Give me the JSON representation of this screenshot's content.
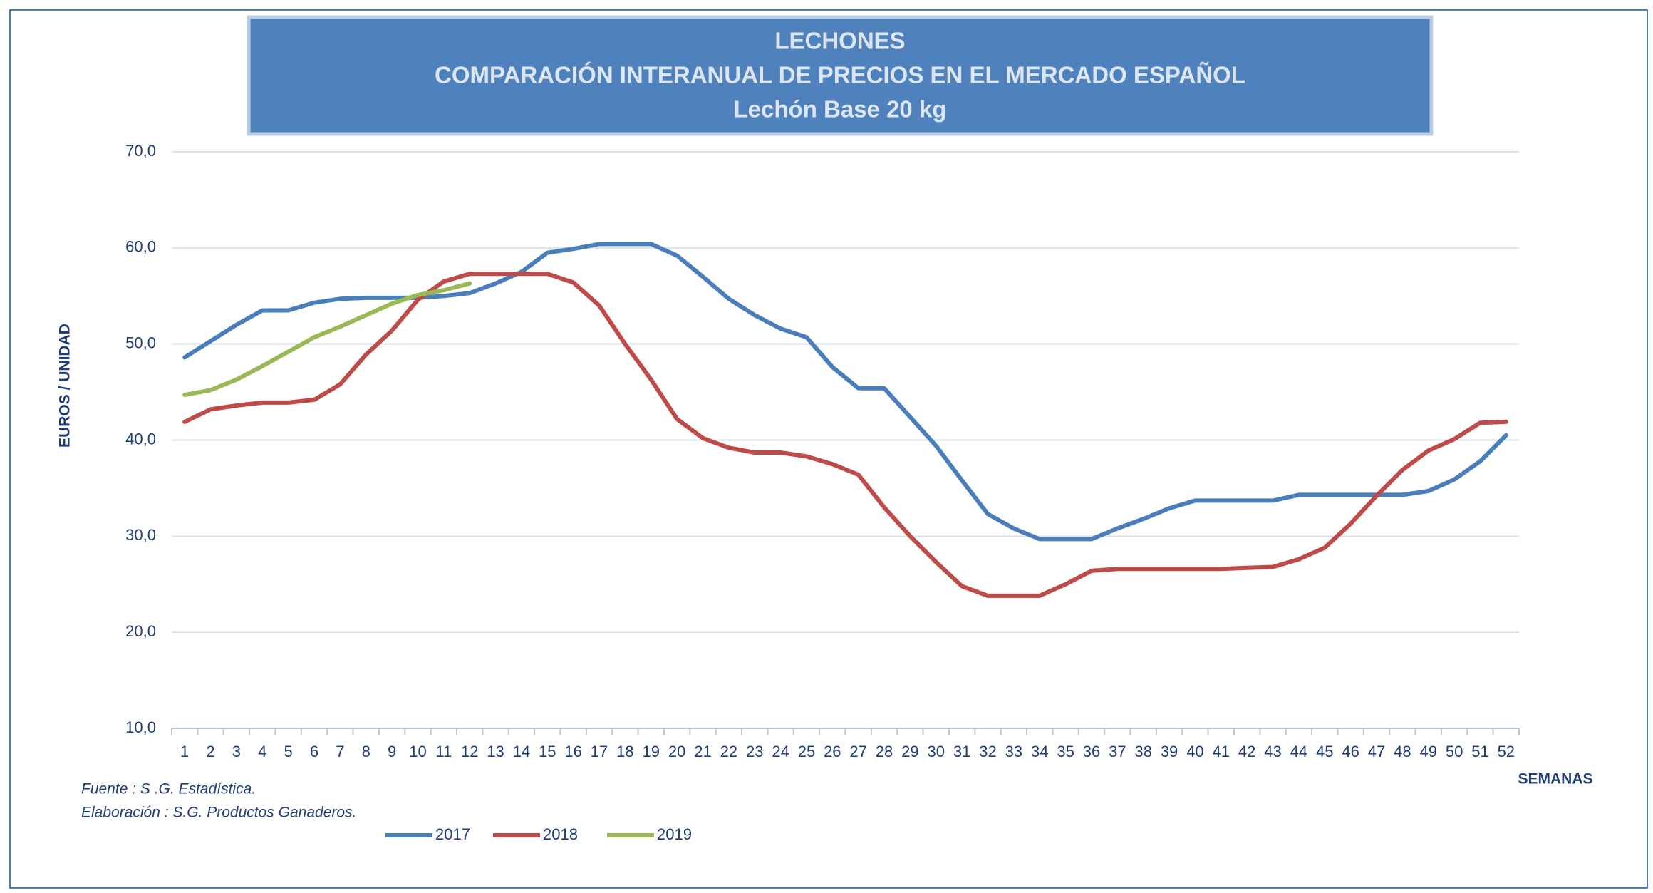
{
  "chart_data": {
    "type": "line",
    "title_lines": [
      "LECHONES",
      "COMPARACIÓN INTERANUAL DE PRECIOS EN EL MERCADO ESPAÑOL",
      "Lechón Base 20 kg"
    ],
    "y_label": "EUROS / UNIDAD",
    "x_label": "SEMANAS",
    "notes": [
      "Fuente :  S .G. Estadística.",
      "Elaboración : S.G. Productos Ganaderos."
    ],
    "categories": [
      "1",
      "2",
      "3",
      "4",
      "5",
      "6",
      "7",
      "8",
      "9",
      "10",
      "11",
      "12",
      "13",
      "14",
      "15",
      "16",
      "17",
      "18",
      "19",
      "20",
      "21",
      "22",
      "23",
      "24",
      "25",
      "26",
      "27",
      "28",
      "29",
      "30",
      "31",
      "32",
      "33",
      "34",
      "35",
      "36",
      "37",
      "38",
      "39",
      "40",
      "41",
      "42",
      "43",
      "44",
      "45",
      "46",
      "47",
      "48",
      "49",
      "50",
      "51",
      "52"
    ],
    "series": [
      {
        "name": "2017",
        "color": "#4a7ebb",
        "values": [
          48.6,
          50.3,
          52.0,
          53.5,
          53.5,
          54.3,
          54.7,
          54.8,
          54.8,
          54.8,
          55.0,
          55.3,
          56.3,
          57.5,
          59.5,
          59.9,
          60.4,
          60.4,
          60.4,
          59.2,
          57.0,
          54.7,
          53.0,
          51.6,
          50.7,
          47.6,
          45.4,
          45.4,
          42.4,
          39.4,
          35.8,
          32.3,
          30.8,
          29.7,
          29.7,
          29.7,
          30.8,
          31.8,
          32.9,
          33.7,
          33.7,
          33.7,
          33.7,
          34.3,
          34.3,
          34.3,
          34.3,
          34.3,
          34.7,
          35.9,
          37.8,
          40.5
        ]
      },
      {
        "name": "2018",
        "color": "#be4b48",
        "values": [
          41.9,
          43.2,
          43.6,
          43.9,
          43.9,
          44.2,
          45.8,
          48.9,
          51.4,
          54.6,
          56.5,
          57.3,
          57.3,
          57.3,
          57.3,
          56.4,
          54.0,
          50.0,
          46.3,
          42.2,
          40.2,
          39.2,
          38.7,
          38.7,
          38.3,
          37.5,
          36.4,
          33.0,
          30.0,
          27.3,
          24.8,
          23.8,
          23.8,
          23.8,
          25.0,
          26.4,
          26.6,
          26.6,
          26.6,
          26.6,
          26.6,
          26.7,
          26.8,
          27.6,
          28.8,
          31.3,
          34.2,
          36.9,
          38.9,
          40.1,
          41.8,
          41.9
        ]
      },
      {
        "name": "2019",
        "color": "#98b954",
        "values": [
          44.7,
          45.2,
          46.3,
          47.7,
          49.2,
          50.7,
          51.8,
          53.0,
          54.2,
          55.1,
          55.6,
          56.3,
          null,
          null,
          null,
          null,
          null,
          null,
          null,
          null,
          null,
          null,
          null,
          null,
          null,
          null,
          null,
          null,
          null,
          null,
          null,
          null,
          null,
          null,
          null,
          null,
          null,
          null,
          null,
          null,
          null,
          null,
          null,
          null,
          null,
          null,
          null,
          null,
          null,
          null,
          null,
          null
        ]
      }
    ],
    "ylim": [
      10,
      70
    ],
    "yticks": [
      {
        "value": 10,
        "label": "10,0"
      },
      {
        "value": 20,
        "label": "20,0"
      },
      {
        "value": 30,
        "label": "30,0"
      },
      {
        "value": 40,
        "label": "40,0"
      },
      {
        "value": 50,
        "label": "50,0"
      },
      {
        "value": 60,
        "label": "60,0"
      },
      {
        "value": 70,
        "label": "70,0"
      }
    ],
    "grid": true
  }
}
